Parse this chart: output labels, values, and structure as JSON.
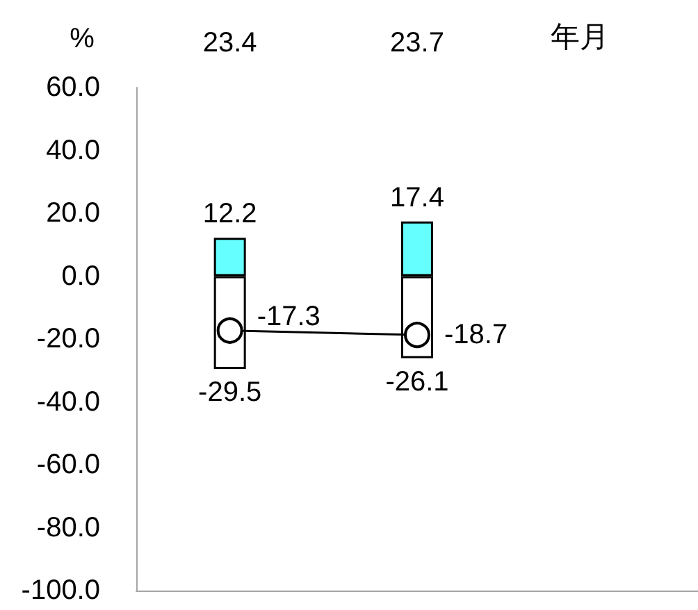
{
  "chart_data": {
    "type": "bar",
    "ylabel": "%",
    "xlabel": "年月",
    "categories": [
      "23.4",
      "23.7",
      null
    ],
    "stacked": true,
    "series": [
      {
        "color": "#66ffff",
        "values": [
          12.2,
          17.4,
          null
        ]
      },
      {
        "color": "#ffffff",
        "values": [
          -29.5,
          -26.1,
          null
        ]
      },
      {
        "type": "line",
        "color": "#000000",
        "values": [
          -17.3,
          -18.7,
          null
        ]
      }
    ],
    "ylim": [
      -100,
      60
    ],
    "yticks": [
      {
        "value": -100,
        "label": "-100.0"
      },
      {
        "value": -80,
        "label": "-80.0"
      },
      {
        "value": -60,
        "label": "-60.0"
      },
      {
        "value": -40,
        "label": "-40.0"
      },
      {
        "value": -20,
        "label": "-20.0"
      },
      {
        "value": 0,
        "label": "0.0"
      },
      {
        "value": 20,
        "label": "20.0"
      },
      {
        "value": 40,
        "label": "40.0"
      },
      {
        "value": 60,
        "label": "60.0"
      }
    ],
    "data_labels": true,
    "marker": "circle"
  }
}
